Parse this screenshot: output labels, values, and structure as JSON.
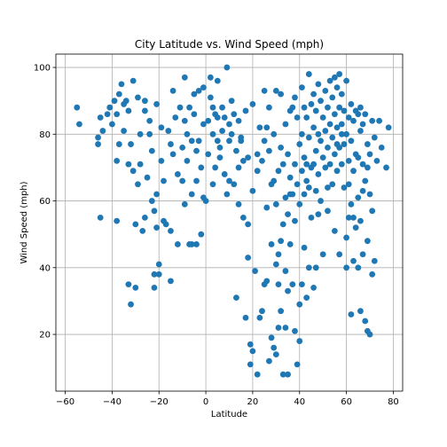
{
  "chart_data": {
    "type": "scatter",
    "title": "City Latitude vs. Wind Speed (mph)",
    "xlabel": "Latitude",
    "ylabel": "Wind Speed (mph)",
    "xlim": [
      -60,
      80
    ],
    "ylim": [
      0,
      100
    ],
    "xticks": [
      -60,
      -40,
      -20,
      0,
      20,
      40,
      60,
      80
    ],
    "yticks": [
      20,
      40,
      60,
      80,
      100
    ],
    "grid": true,
    "marker_color": "#1f77b4",
    "points": [
      [
        -55,
        88
      ],
      [
        -54,
        83
      ],
      [
        -46,
        79
      ],
      [
        -46,
        77
      ],
      [
        -45,
        55
      ],
      [
        -45,
        85
      ],
      [
        -44,
        81
      ],
      [
        -42,
        86
      ],
      [
        -41,
        88
      ],
      [
        -40,
        83
      ],
      [
        -39,
        90
      ],
      [
        -38,
        72
      ],
      [
        -38,
        54
      ],
      [
        -38,
        86
      ],
      [
        -37,
        92
      ],
      [
        -37,
        77
      ],
      [
        -36,
        95
      ],
      [
        -35,
        89
      ],
      [
        -35,
        81
      ],
      [
        -34,
        90
      ],
      [
        -33,
        87
      ],
      [
        -33,
        71
      ],
      [
        -33,
        35
      ],
      [
        -32,
        29
      ],
      [
        -32,
        77
      ],
      [
        -31,
        96
      ],
      [
        -31,
        69
      ],
      [
        -30,
        53
      ],
      [
        -30,
        34
      ],
      [
        -29,
        91
      ],
      [
        -28,
        80
      ],
      [
        -28,
        71
      ],
      [
        -27,
        51
      ],
      [
        -26,
        90
      ],
      [
        -26,
        87
      ],
      [
        -25,
        67
      ],
      [
        -24,
        84
      ],
      [
        -24,
        80
      ],
      [
        -23,
        75
      ],
      [
        -23,
        60
      ],
      [
        -22,
        57
      ],
      [
        -22,
        38
      ],
      [
        -22,
        34
      ],
      [
        -21,
        89
      ],
      [
        -21,
        62
      ],
      [
        -21,
        52
      ],
      [
        -20,
        41
      ],
      [
        -20,
        38
      ],
      [
        -19,
        82
      ],
      [
        -19,
        72
      ],
      [
        -18,
        66
      ],
      [
        -18,
        54
      ],
      [
        -17,
        53
      ],
      [
        -16,
        81
      ],
      [
        -15,
        77
      ],
      [
        -15,
        51
      ],
      [
        -15,
        36
      ],
      [
        -14,
        93
      ],
      [
        -14,
        74
      ],
      [
        -13,
        85
      ],
      [
        -12,
        68
      ],
      [
        -12,
        47
      ],
      [
        -11,
        88
      ],
      [
        -10,
        76
      ],
      [
        -10,
        66
      ],
      [
        -9,
        97
      ],
      [
        -9,
        84
      ],
      [
        -9,
        59
      ],
      [
        -8,
        80
      ],
      [
        -8,
        72
      ],
      [
        -7,
        88
      ],
      [
        -7,
        47
      ],
      [
        -6,
        78
      ],
      [
        -6,
        62
      ],
      [
        -5,
        92
      ],
      [
        -5,
        86
      ],
      [
        -4,
        75
      ],
      [
        -4,
        66
      ],
      [
        -4,
        47
      ],
      [
        -3,
        93
      ],
      [
        -3,
        78
      ],
      [
        -2,
        70
      ],
      [
        -2,
        50
      ],
      [
        -1,
        94
      ],
      [
        -1,
        83
      ],
      [
        -1,
        61
      ],
      [
        1,
        84
      ],
      [
        1,
        74
      ],
      [
        2,
        97
      ],
      [
        2,
        91
      ],
      [
        3,
        88
      ],
      [
        3,
        80
      ],
      [
        3,
        65
      ],
      [
        4,
        86
      ],
      [
        4,
        70
      ],
      [
        5,
        96
      ],
      [
        5,
        85
      ],
      [
        6,
        76
      ],
      [
        6,
        73
      ],
      [
        7,
        88
      ],
      [
        7,
        81
      ],
      [
        8,
        85
      ],
      [
        8,
        68
      ],
      [
        9,
        100
      ],
      [
        9,
        62
      ],
      [
        10,
        83
      ],
      [
        10,
        78
      ],
      [
        11,
        80
      ],
      [
        11,
        90
      ],
      [
        12,
        86
      ],
      [
        12,
        65
      ],
      [
        13,
        75
      ],
      [
        13,
        31
      ],
      [
        14,
        84
      ],
      [
        14,
        59
      ],
      [
        15,
        79
      ],
      [
        15,
        78
      ],
      [
        16,
        72
      ],
      [
        16,
        55
      ],
      [
        17,
        87
      ],
      [
        17,
        25
      ],
      [
        18,
        73
      ],
      [
        18,
        53
      ],
      [
        18,
        43
      ],
      [
        19,
        17
      ],
      [
        19,
        11
      ],
      [
        20,
        89
      ],
      [
        20,
        63
      ],
      [
        20,
        15
      ],
      [
        21,
        39
      ],
      [
        22,
        74
      ],
      [
        22,
        8
      ],
      [
        23,
        82
      ],
      [
        23,
        25
      ],
      [
        24,
        72
      ],
      [
        24,
        27
      ],
      [
        25,
        93
      ],
      [
        25,
        78
      ],
      [
        26,
        36
      ],
      [
        26,
        58
      ],
      [
        27,
        88
      ],
      [
        27,
        75
      ],
      [
        28,
        65
      ],
      [
        28,
        47
      ],
      [
        28,
        19
      ],
      [
        29,
        80
      ],
      [
        29,
        66
      ],
      [
        29,
        16
      ],
      [
        30,
        93
      ],
      [
        30,
        59
      ],
      [
        30,
        41
      ],
      [
        30,
        14
      ],
      [
        31,
        69
      ],
      [
        31,
        44
      ],
      [
        31,
        35
      ],
      [
        32,
        92
      ],
      [
        32,
        76
      ],
      [
        32,
        48
      ],
      [
        32,
        27
      ],
      [
        33,
        8
      ],
      [
        33,
        71
      ],
      [
        33,
        53
      ],
      [
        34,
        83
      ],
      [
        34,
        61
      ],
      [
        34,
        39
      ],
      [
        34,
        22
      ],
      [
        35,
        74
      ],
      [
        35,
        56
      ],
      [
        35,
        33
      ],
      [
        35,
        8
      ],
      [
        36,
        87
      ],
      [
        36,
        67
      ],
      [
        36,
        47
      ],
      [
        37,
        88
      ],
      [
        37,
        62
      ],
      [
        37,
        35
      ],
      [
        38,
        91
      ],
      [
        38,
        71
      ],
      [
        38,
        54
      ],
      [
        38,
        21
      ],
      [
        39,
        11
      ],
      [
        39,
        85
      ],
      [
        39,
        65
      ],
      [
        40,
        77
      ],
      [
        40,
        59
      ],
      [
        40,
        29
      ],
      [
        40,
        18
      ],
      [
        41,
        94
      ],
      [
        41,
        80
      ],
      [
        41,
        69
      ],
      [
        41,
        35
      ],
      [
        42,
        88
      ],
      [
        42,
        73
      ],
      [
        42,
        62
      ],
      [
        42,
        46
      ],
      [
        43,
        85
      ],
      [
        43,
        71
      ],
      [
        43,
        31
      ],
      [
        44,
        98
      ],
      [
        44,
        79
      ],
      [
        44,
        64
      ],
      [
        44,
        40
      ],
      [
        45,
        89
      ],
      [
        45,
        70
      ],
      [
        45,
        55
      ],
      [
        46,
        92
      ],
      [
        46,
        82
      ],
      [
        46,
        71
      ],
      [
        46,
        34
      ],
      [
        47,
        87
      ],
      [
        47,
        75
      ],
      [
        47,
        63
      ],
      [
        47,
        40
      ],
      [
        48,
        95
      ],
      [
        48,
        80
      ],
      [
        48,
        68
      ],
      [
        49,
        90
      ],
      [
        49,
        78
      ],
      [
        49,
        60
      ],
      [
        50,
        85
      ],
      [
        50,
        73
      ],
      [
        50,
        44
      ],
      [
        51,
        93
      ],
      [
        51,
        81
      ],
      [
        51,
        70
      ],
      [
        52,
        88
      ],
      [
        52,
        76
      ],
      [
        52,
        57
      ],
      [
        53,
        96
      ],
      [
        53,
        83
      ],
      [
        53,
        71
      ],
      [
        54,
        91
      ],
      [
        54,
        79
      ],
      [
        54,
        65
      ],
      [
        55,
        97
      ],
      [
        55,
        86
      ],
      [
        55,
        74
      ],
      [
        55,
        51
      ],
      [
        56,
        94
      ],
      [
        56,
        82
      ],
      [
        56,
        69
      ],
      [
        57,
        98
      ],
      [
        57,
        88
      ],
      [
        57,
        76
      ],
      [
        57,
        44
      ],
      [
        58,
        92
      ],
      [
        58,
        83
      ],
      [
        58,
        71
      ],
      [
        59,
        87
      ],
      [
        59,
        77
      ],
      [
        59,
        64
      ],
      [
        60,
        96
      ],
      [
        60,
        80
      ],
      [
        60,
        49
      ],
      [
        60,
        40
      ],
      [
        61,
        85
      ],
      [
        61,
        72
      ],
      [
        61,
        55
      ],
      [
        62,
        89
      ],
      [
        62,
        78
      ],
      [
        62,
        59
      ],
      [
        62,
        26
      ],
      [
        63,
        84
      ],
      [
        63,
        69
      ],
      [
        63,
        42
      ],
      [
        64,
        87
      ],
      [
        64,
        74
      ],
      [
        64,
        52
      ],
      [
        65,
        86
      ],
      [
        65,
        73
      ],
      [
        65,
        61
      ],
      [
        65,
        40
      ],
      [
        66,
        88
      ],
      [
        66,
        81
      ],
      [
        66,
        54
      ],
      [
        66,
        27
      ],
      [
        67,
        83
      ],
      [
        67,
        71
      ],
      [
        67,
        44
      ],
      [
        68,
        86
      ],
      [
        68,
        66
      ],
      [
        68,
        24
      ],
      [
        69,
        77
      ],
      [
        69,
        48
      ],
      [
        69,
        21
      ],
      [
        70,
        74
      ],
      [
        70,
        62
      ],
      [
        70,
        20
      ],
      [
        71,
        84
      ],
      [
        71,
        57
      ],
      [
        71,
        38
      ],
      [
        72,
        79
      ],
      [
        72,
        42
      ],
      [
        73,
        72
      ],
      [
        74,
        84
      ],
      [
        75,
        76
      ],
      [
        77,
        70
      ],
      [
        78,
        82
      ],
      [
        -29,
        65
      ],
      [
        -26,
        55
      ],
      [
        -6,
        47
      ],
      [
        0,
        60
      ],
      [
        5,
        78
      ],
      [
        10,
        66
      ],
      [
        14,
        70
      ],
      [
        22,
        69
      ],
      [
        26,
        82
      ],
      [
        36,
        62
      ],
      [
        43,
        66
      ],
      [
        48,
        56
      ],
      [
        52,
        64
      ],
      [
        56,
        77
      ],
      [
        58,
        80
      ],
      [
        61,
        65
      ],
      [
        63,
        55
      ],
      [
        67,
        63
      ],
      [
        69,
        70
      ],
      [
        25,
        35
      ],
      [
        31,
        22
      ],
      [
        27,
        12
      ]
    ]
  }
}
